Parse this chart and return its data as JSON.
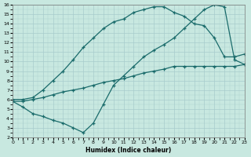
{
  "xlabel": "Humidex (Indice chaleur)",
  "xlim": [
    0,
    23
  ],
  "ylim": [
    2,
    16
  ],
  "xticks": [
    0,
    1,
    2,
    3,
    4,
    5,
    6,
    7,
    8,
    9,
    10,
    11,
    12,
    13,
    14,
    15,
    16,
    17,
    18,
    19,
    20,
    21,
    22,
    23
  ],
  "yticks": [
    2,
    3,
    4,
    5,
    6,
    7,
    8,
    9,
    10,
    11,
    12,
    13,
    14,
    15,
    16
  ],
  "bg": "#c8e8e0",
  "grid_color": "#a8cccc",
  "lc": "#1a6b6b",
  "line1_x": [
    0,
    1,
    2,
    3,
    4,
    5,
    6,
    7,
    8,
    9,
    10,
    11,
    12,
    13,
    14,
    15,
    16,
    17,
    18,
    19,
    20,
    21,
    22,
    23
  ],
  "line1_y": [
    6.0,
    6.0,
    6.2,
    7.0,
    8.0,
    9.0,
    10.2,
    11.5,
    12.5,
    13.5,
    14.2,
    14.5,
    15.2,
    15.5,
    15.8,
    15.8,
    15.2,
    14.8,
    14.0,
    13.8,
    12.5,
    10.5,
    10.5,
    10.8
  ],
  "line2_x": [
    0,
    1,
    2,
    3,
    4,
    5,
    6,
    7,
    8,
    9,
    10,
    11,
    12,
    13,
    14,
    15,
    16,
    17,
    18,
    19,
    20,
    21,
    22,
    23
  ],
  "line2_y": [
    5.8,
    5.8,
    6.0,
    6.2,
    6.5,
    6.8,
    7.0,
    7.2,
    7.5,
    7.8,
    8.0,
    8.2,
    8.5,
    8.8,
    9.0,
    9.2,
    9.5,
    9.5,
    9.5,
    9.5,
    9.5,
    9.5,
    9.5,
    9.7
  ],
  "line3_x": [
    0,
    1,
    2,
    3,
    4,
    5,
    6,
    7,
    8,
    9,
    10,
    11,
    12,
    13,
    14,
    15,
    16,
    17,
    18,
    19,
    20,
    21,
    22,
    23
  ],
  "line3_y": [
    5.8,
    5.2,
    4.5,
    4.2,
    3.8,
    3.5,
    3.0,
    2.5,
    3.5,
    5.5,
    7.5,
    8.5,
    9.5,
    10.5,
    11.2,
    11.8,
    12.5,
    13.5,
    14.5,
    15.5,
    16.0,
    15.8,
    10.2,
    9.7
  ]
}
